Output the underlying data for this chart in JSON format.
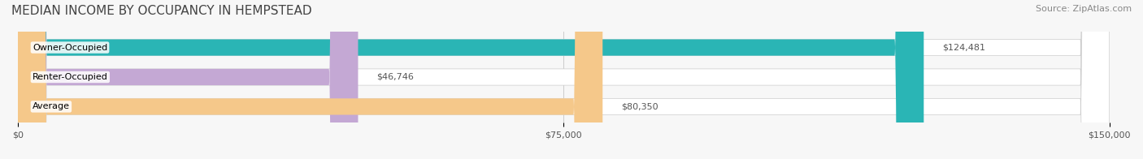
{
  "title": "MEDIAN INCOME BY OCCUPANCY IN HEMPSTEAD",
  "source": "Source: ZipAtlas.com",
  "categories": [
    "Owner-Occupied",
    "Renter-Occupied",
    "Average"
  ],
  "values": [
    124481,
    46746,
    80350
  ],
  "labels": [
    "$124,481",
    "$46,746",
    "$80,350"
  ],
  "bar_colors": [
    "#2ab5b5",
    "#c4a8d4",
    "#f5c88a"
  ],
  "bar_bg_colors": [
    "#f0f0f0",
    "#f0f0f0",
    "#f0f0f0"
  ],
  "xlim": [
    0,
    150000
  ],
  "xticks": [
    0,
    75000,
    150000
  ],
  "xticklabels": [
    "$0",
    "$75,000",
    "$150,000"
  ],
  "title_fontsize": 11,
  "source_fontsize": 8,
  "label_fontsize": 8,
  "category_fontsize": 8,
  "bar_height": 0.55,
  "background_color": "#f7f7f7"
}
